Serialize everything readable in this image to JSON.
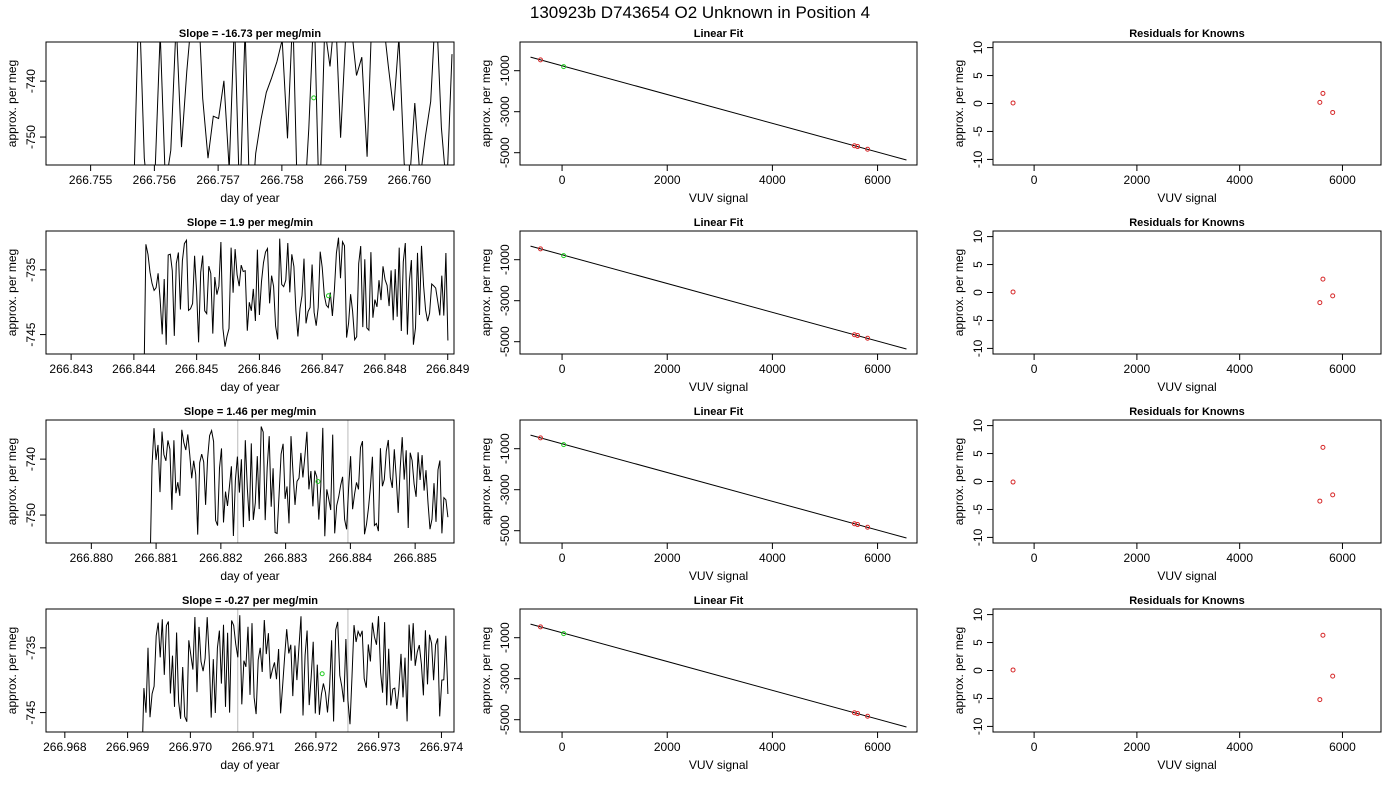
{
  "figure": {
    "title": "130923b      D743654    O2 Unknown in Position  4"
  },
  "rows": [
    {
      "timeseries": {
        "title": "Slope =  -16.73  per meg/min",
        "xlabel": "day of year",
        "ylabel": "approx. per meg",
        "xlim": [
          266.7543,
          266.7607
        ],
        "ylim": [
          -755,
          -733
        ],
        "xticks": [
          "266.755",
          "266.756",
          "266.757",
          "266.758",
          "266.759",
          "266.760"
        ],
        "yticks": [
          "-740",
          "-750"
        ],
        "marker": {
          "x": 266.7585,
          "y": -743
        },
        "seed": 11
      },
      "fit": {
        "title": "Linear Fit",
        "xlabel": "VUV signal",
        "ylabel": "approx. per meg",
        "knowns": [
          [
            -410,
            -470
          ],
          [
            5560,
            -4660
          ],
          [
            5620,
            -4700
          ],
          [
            5810,
            -4830
          ]
        ],
        "unknown": [
          30,
          -800
        ]
      },
      "resid": {
        "title": "Residuals for Knowns",
        "xlabel": "VUV signal",
        "ylabel": "approx. per meg",
        "points": [
          [
            -410,
            0.1
          ],
          [
            5560,
            0.2
          ],
          [
            5620,
            1.8
          ],
          [
            5810,
            -1.6
          ]
        ]
      }
    },
    {
      "timeseries": {
        "title": "Slope =  1.9  per meg/min",
        "xlabel": "day of year",
        "ylabel": "approx. per meg",
        "xlim": [
          266.8426,
          266.8491
        ],
        "ylim": [
          -748,
          -729
        ],
        "xticks": [
          "266.843",
          "266.844",
          "266.845",
          "266.846",
          "266.847",
          "266.848",
          "266.849"
        ],
        "yticks": [
          "-735",
          "-745"
        ],
        "marker": {
          "x": 266.8471,
          "y": -739
        },
        "seed": 23
      },
      "fit": {
        "title": "Linear Fit",
        "xlabel": "VUV signal",
        "ylabel": "approx. per meg",
        "knowns": [
          [
            -410,
            -470
          ],
          [
            5560,
            -4660
          ],
          [
            5620,
            -4700
          ],
          [
            5810,
            -4830
          ]
        ],
        "unknown": [
          30,
          -800
        ]
      },
      "resid": {
        "title": "Residuals for Knowns",
        "xlabel": "VUV signal",
        "ylabel": "approx. per meg",
        "points": [
          [
            -410,
            0.1
          ],
          [
            5560,
            -1.8
          ],
          [
            5620,
            2.4
          ],
          [
            5810,
            -0.6
          ]
        ]
      }
    },
    {
      "timeseries": {
        "title": "Slope =  1.46  per meg/min",
        "xlabel": "day of year",
        "ylabel": "approx. per meg",
        "xlim": [
          266.8793,
          266.8856
        ],
        "ylim": [
          -755,
          -733
        ],
        "xticks": [
          "266.880",
          "266.881",
          "266.882",
          "266.883",
          "266.884",
          "266.885"
        ],
        "yticks": [
          "-740",
          "-750"
        ],
        "marker": {
          "x": 266.8835,
          "y": -744
        },
        "seed": 37
      },
      "fit": {
        "title": "Linear Fit",
        "xlabel": "VUV signal",
        "ylabel": "approx. per meg",
        "knowns": [
          [
            -410,
            -470
          ],
          [
            5560,
            -4660
          ],
          [
            5620,
            -4700
          ],
          [
            5810,
            -4830
          ]
        ],
        "unknown": [
          30,
          -800
        ]
      },
      "resid": {
        "title": "Residuals for Knowns",
        "xlabel": "VUV signal",
        "ylabel": "approx. per meg",
        "points": [
          [
            -410,
            -0.1
          ],
          [
            5560,
            -3.5
          ],
          [
            5620,
            6.1
          ],
          [
            5810,
            -2.4
          ]
        ]
      }
    },
    {
      "timeseries": {
        "title": "Slope =  -0.27  per meg/min",
        "xlabel": "day of year",
        "ylabel": "approx. per meg",
        "xlim": [
          266.9677,
          266.9742
        ],
        "ylim": [
          -748,
          -729
        ],
        "xticks": [
          "266.968",
          "266.969",
          "266.970",
          "266.971",
          "266.972",
          "266.973",
          "266.974"
        ],
        "yticks": [
          "-735",
          "-745"
        ],
        "marker": {
          "x": 266.9721,
          "y": -739
        },
        "seed": 51
      },
      "fit": {
        "title": "Linear Fit",
        "xlabel": "VUV signal",
        "ylabel": "approx. per meg",
        "knowns": [
          [
            -410,
            -470
          ],
          [
            5560,
            -4660
          ],
          [
            5620,
            -4700
          ],
          [
            5810,
            -4830
          ]
        ],
        "unknown": [
          30,
          -800
        ]
      },
      "resid": {
        "title": "Residuals for Knowns",
        "xlabel": "VUV signal",
        "ylabel": "approx. per meg",
        "points": [
          [
            -410,
            0.1
          ],
          [
            5560,
            -5.2
          ],
          [
            5620,
            6.3
          ],
          [
            5810,
            -1.0
          ]
        ]
      }
    }
  ],
  "shared": {
    "fit_xlim": [
      -800,
      6750
    ],
    "fit_ylim": [
      -5600,
      400
    ],
    "fit_xticks": [
      "0",
      "2000",
      "4000",
      "6000"
    ],
    "fit_yticks": [
      "-1000",
      "-3000",
      "-5000"
    ],
    "fit_line": {
      "slope": -0.702,
      "intercept": -758
    },
    "resid_xlim": [
      -800,
      6750
    ],
    "resid_ylim": [
      -11,
      11
    ],
    "resid_xticks": [
      "0",
      "2000",
      "4000",
      "6000"
    ],
    "resid_yticks": [
      "10",
      "5",
      "0",
      "-5",
      "-10"
    ]
  },
  "chart_data": [
    {
      "type": "line",
      "title": "Slope =  -16.73  per meg/min",
      "xlabel": "day of year",
      "ylabel": "approx. per meg",
      "xlim": [
        266.7543,
        266.7607
      ],
      "ylim": [
        -755,
        -733
      ]
    },
    {
      "type": "scatter",
      "title": "Linear Fit",
      "xlabel": "VUV signal",
      "ylabel": "approx. per meg",
      "x": [
        -410,
        5560,
        5620,
        5810
      ],
      "y": [
        -470,
        -4660,
        -4700,
        -4830
      ]
    },
    {
      "type": "scatter",
      "title": "Residuals for Knowns",
      "xlabel": "VUV signal",
      "ylabel": "approx. per meg",
      "x": [
        -410,
        5560,
        5620,
        5810
      ],
      "y": [
        0.1,
        0.2,
        1.8,
        -1.6
      ]
    },
    {
      "type": "line",
      "title": "Slope =  1.9  per meg/min",
      "xlabel": "day of year",
      "ylabel": "approx. per meg",
      "xlim": [
        266.8426,
        266.8491
      ],
      "ylim": [
        -748,
        -729
      ]
    },
    {
      "type": "scatter",
      "title": "Linear Fit",
      "xlabel": "VUV signal",
      "ylabel": "approx. per meg",
      "x": [
        -410,
        5560,
        5620,
        5810
      ],
      "y": [
        -470,
        -4660,
        -4700,
        -4830
      ]
    },
    {
      "type": "scatter",
      "title": "Residuals for Knowns",
      "xlabel": "VUV signal",
      "ylabel": "approx. per meg",
      "x": [
        -410,
        5560,
        5620,
        5810
      ],
      "y": [
        0.1,
        -1.8,
        2.4,
        -0.6
      ]
    },
    {
      "type": "line",
      "title": "Slope =  1.46  per meg/min",
      "xlabel": "day of year",
      "ylabel": "approx. per meg",
      "xlim": [
        266.8793,
        266.8856
      ],
      "ylim": [
        -755,
        -733
      ]
    },
    {
      "type": "scatter",
      "title": "Linear Fit",
      "xlabel": "VUV signal",
      "ylabel": "approx. per meg",
      "x": [
        -410,
        5560,
        5620,
        5810
      ],
      "y": [
        -470,
        -4660,
        -4700,
        -4830
      ]
    },
    {
      "type": "scatter",
      "title": "Residuals for Knowns",
      "xlabel": "VUV signal",
      "ylabel": "approx. per meg",
      "x": [
        -410,
        5560,
        5620,
        5810
      ],
      "y": [
        -0.1,
        -3.5,
        6.1,
        -2.4
      ]
    },
    {
      "type": "line",
      "title": "Slope =  -0.27  per meg/min",
      "xlabel": "day of year",
      "ylabel": "approx. per meg",
      "xlim": [
        266.9677,
        266.9742
      ],
      "ylim": [
        -748,
        -729
      ]
    },
    {
      "type": "scatter",
      "title": "Linear Fit",
      "xlabel": "VUV signal",
      "ylabel": "approx. per meg",
      "x": [
        -410,
        5560,
        5620,
        5810
      ],
      "y": [
        -470,
        -4660,
        -4700,
        -4830
      ]
    },
    {
      "type": "scatter",
      "title": "Residuals for Knowns",
      "xlabel": "VUV signal",
      "ylabel": "approx. per meg",
      "x": [
        -410,
        5560,
        5620,
        5810
      ],
      "y": [
        0.1,
        -5.2,
        6.3,
        -1.0
      ]
    }
  ],
  "colors": {
    "known_point": "#d62728",
    "unknown_point": "#22cc22",
    "line": "#000000",
    "vline": "#bbbbbb"
  }
}
